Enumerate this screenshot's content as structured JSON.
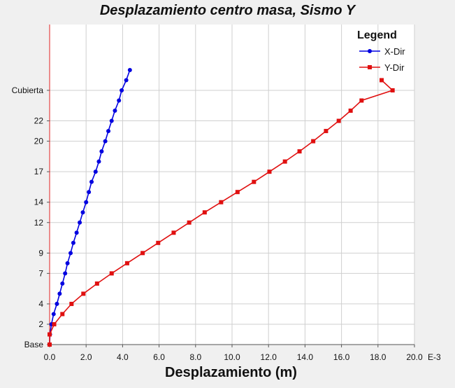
{
  "chart_data": {
    "type": "line",
    "title": "Desplazamiento centro masa, Sismo Y",
    "xlabel": "Desplazamiento (m)",
    "x_multiplier_label": "E-3",
    "xlim": [
      0,
      20
    ],
    "x_ticks": [
      {
        "value": 0,
        "label": "0.0"
      },
      {
        "value": 2,
        "label": "2.0"
      },
      {
        "value": 4,
        "label": "4.0"
      },
      {
        "value": 6,
        "label": "6.0"
      },
      {
        "value": 8,
        "label": "8.0"
      },
      {
        "value": 10,
        "label": "10.0"
      },
      {
        "value": 12,
        "label": "12.0"
      },
      {
        "value": 14,
        "label": "14.0"
      },
      {
        "value": 16,
        "label": "16.0"
      },
      {
        "value": 18,
        "label": "18.0"
      },
      {
        "value": 20,
        "label": "20.0"
      }
    ],
    "ylim": [
      0,
      26
    ],
    "y_ticks": [
      {
        "value": 0,
        "label": "Base"
      },
      {
        "value": 2,
        "label": "2"
      },
      {
        "value": 4,
        "label": "4"
      },
      {
        "value": 7,
        "label": "7"
      },
      {
        "value": 9,
        "label": "9"
      },
      {
        "value": 12,
        "label": "12"
      },
      {
        "value": 14,
        "label": "14"
      },
      {
        "value": 17,
        "label": "17"
      },
      {
        "value": 20,
        "label": "20"
      },
      {
        "value": 22,
        "label": "22"
      },
      {
        "value": 25,
        "label": "Cubierta"
      }
    ],
    "grid": true,
    "legend": {
      "title": "Legend",
      "position": "top-right"
    },
    "series": [
      {
        "name": "X-Dir",
        "color": "#0000e0",
        "marker": "circle",
        "points": [
          [
            0,
            0
          ],
          [
            0.02,
            1
          ],
          [
            0.1,
            2
          ],
          [
            0.22,
            3
          ],
          [
            0.4,
            4
          ],
          [
            0.55,
            5
          ],
          [
            0.7,
            6
          ],
          [
            0.85,
            7
          ],
          [
            0.98,
            8
          ],
          [
            1.15,
            9
          ],
          [
            1.3,
            10
          ],
          [
            1.48,
            11
          ],
          [
            1.65,
            12
          ],
          [
            1.82,
            13
          ],
          [
            2.0,
            14
          ],
          [
            2.15,
            15
          ],
          [
            2.3,
            16
          ],
          [
            2.52,
            17
          ],
          [
            2.7,
            18
          ],
          [
            2.85,
            19
          ],
          [
            3.05,
            20
          ],
          [
            3.22,
            21
          ],
          [
            3.4,
            22
          ],
          [
            3.58,
            23
          ],
          [
            3.8,
            24
          ],
          [
            3.95,
            25
          ],
          [
            4.2,
            26
          ],
          [
            4.4,
            27
          ]
        ]
      },
      {
        "name": "Y-Dir",
        "color": "#e01010",
        "marker": "square",
        "points": [
          [
            0,
            0
          ],
          [
            0,
            1
          ],
          [
            0.25,
            2
          ],
          [
            0.7,
            3
          ],
          [
            1.2,
            4
          ],
          [
            1.85,
            5
          ],
          [
            2.6,
            6
          ],
          [
            3.4,
            7
          ],
          [
            4.25,
            8
          ],
          [
            5.1,
            9
          ],
          [
            5.95,
            10
          ],
          [
            6.8,
            11
          ],
          [
            7.65,
            12
          ],
          [
            8.5,
            13
          ],
          [
            9.4,
            14
          ],
          [
            10.3,
            15
          ],
          [
            11.2,
            16
          ],
          [
            12.05,
            17
          ],
          [
            12.9,
            18
          ],
          [
            13.7,
            19
          ],
          [
            14.45,
            20
          ],
          [
            15.15,
            21
          ],
          [
            15.85,
            22
          ],
          [
            16.5,
            23
          ],
          [
            17.1,
            24
          ],
          [
            18.8,
            25
          ],
          [
            18.2,
            26
          ]
        ]
      }
    ]
  }
}
